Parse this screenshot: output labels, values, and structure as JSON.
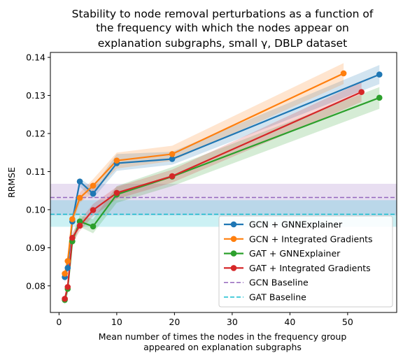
{
  "chart_data": {
    "type": "line",
    "title": [
      "Stability to node removal perturbations as a function of",
      "the frequency with which the nodes appear on",
      "explanation subgraphs, small γ, DBLP dataset"
    ],
    "xlabel": [
      "Mean number of times the nodes in the frequency group",
      "appeared on explanation subgraphs"
    ],
    "ylabel": "RRMSE",
    "xlim": [
      -1.5,
      58.5
    ],
    "ylim": [
      0.073,
      0.1413
    ],
    "xticks": [
      0,
      10,
      20,
      30,
      40,
      50
    ],
    "xtick_labels": [
      "0",
      "10",
      "20",
      "30",
      "40",
      "50"
    ],
    "yticks": [
      0.08,
      0.09,
      0.1,
      0.11,
      0.12,
      0.13,
      0.14
    ],
    "ytick_labels": [
      "0.08",
      "0.09",
      "0.10",
      "0.11",
      "0.12",
      "0.13",
      "0.14"
    ],
    "legend_position": "lower-right",
    "series": [
      {
        "name": "GCN + GNNExplainer",
        "color": "#1f77b4",
        "x": [
          1.0,
          1.5,
          2.3,
          3.6,
          5.9,
          10.0,
          19.6,
          55.5
        ],
        "y": [
          0.0823,
          0.0847,
          0.0969,
          0.1074,
          0.1042,
          0.1122,
          0.1133,
          0.1355
        ],
        "upper": [
          0.0835,
          0.0862,
          0.0985,
          0.1082,
          0.1058,
          0.1146,
          0.1152,
          0.138
        ],
        "lower": [
          0.0808,
          0.0832,
          0.0955,
          0.106,
          0.103,
          0.1102,
          0.1118,
          0.133
        ]
      },
      {
        "name": "GCN + Integrated Gradients",
        "color": "#ff7f0e",
        "x": [
          1.0,
          1.5,
          2.3,
          3.6,
          5.9,
          10.0,
          19.6,
          49.3
        ],
        "y": [
          0.0832,
          0.0865,
          0.0975,
          0.1031,
          0.1063,
          0.1129,
          0.1146,
          0.1358
        ],
        "upper": [
          0.0845,
          0.088,
          0.099,
          0.1045,
          0.108,
          0.115,
          0.1168,
          0.1385
        ],
        "lower": [
          0.0818,
          0.085,
          0.096,
          0.1018,
          0.1045,
          0.1108,
          0.1128,
          0.133
        ]
      },
      {
        "name": "GAT + GNNExplainer",
        "color": "#2ca02c",
        "x": [
          1.0,
          1.5,
          2.3,
          3.6,
          5.9,
          10.0,
          19.6,
          55.5
        ],
        "y": [
          0.0763,
          0.0792,
          0.0917,
          0.0969,
          0.0956,
          0.104,
          0.1087,
          0.1294
        ],
        "upper": [
          0.0775,
          0.0805,
          0.0932,
          0.0985,
          0.0975,
          0.1062,
          0.1112,
          0.1322
        ],
        "lower": [
          0.075,
          0.0778,
          0.0902,
          0.0955,
          0.0938,
          0.1018,
          0.1062,
          0.1265
        ]
      },
      {
        "name": "GAT + Integrated Gradients",
        "color": "#d62728",
        "x": [
          1.0,
          1.5,
          2.3,
          3.6,
          5.9,
          10.0,
          19.6,
          52.4
        ],
        "y": [
          0.0766,
          0.0797,
          0.0926,
          0.0958,
          0.0999,
          0.1044,
          0.1088,
          0.1309
        ],
        "upper": [
          0.0778,
          0.081,
          0.094,
          0.0972,
          0.1015,
          0.106,
          0.1105,
          0.1335
        ],
        "lower": [
          0.0752,
          0.0784,
          0.0912,
          0.0944,
          0.0983,
          0.1028,
          0.1071,
          0.1283
        ]
      }
    ],
    "baselines": [
      {
        "name": "GCN Baseline",
        "color": "#9467bd",
        "value": 0.1032,
        "band": [
          0.0985,
          0.1068
        ]
      },
      {
        "name": "GAT Baseline",
        "color": "#17becf",
        "value": 0.0988,
        "band": [
          0.0955,
          0.1025
        ]
      }
    ]
  }
}
